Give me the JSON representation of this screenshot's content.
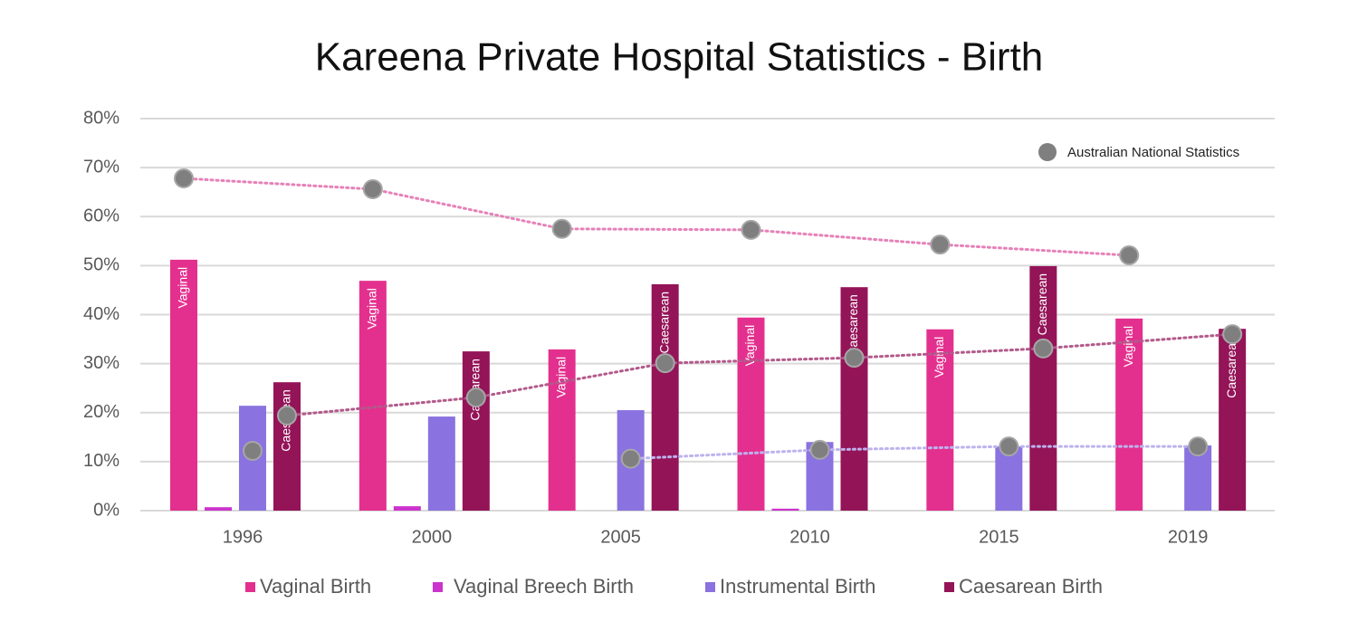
{
  "chart_data": {
    "type": "bar",
    "title": "Kareena Private Hospital Statistics - Birth",
    "categories": [
      "1996",
      "2000",
      "2005",
      "2010",
      "2015",
      "2019"
    ],
    "ylim": [
      0,
      80
    ],
    "yticks": [
      {
        "value": 0,
        "label": "0%"
      },
      {
        "value": 10,
        "label": "10%"
      },
      {
        "value": 20,
        "label": "20%"
      },
      {
        "value": 30,
        "label": "30%"
      },
      {
        "value": 40,
        "label": "40%"
      },
      {
        "value": 50,
        "label": "50%"
      },
      {
        "value": 60,
        "label": "60%"
      },
      {
        "value": 70,
        "label": "70%"
      },
      {
        "value": 80,
        "label": "80%"
      }
    ],
    "grid": true,
    "national_legend": "Australian National Statistics",
    "national_color": "#7f7f7f",
    "series": [
      {
        "name": "Vaginal Birth",
        "color": "#e3308e",
        "bar_label": "Vaginal",
        "values": [
          51.2,
          46.9,
          32.9,
          39.4,
          37.0,
          39.2
        ],
        "line_color": "#e681b8",
        "national": [
          67.8,
          65.6,
          57.5,
          57.3,
          54.3,
          52.1
        ]
      },
      {
        "name": "Vaginal Breech Birth",
        "color": "#cc33cc",
        "values": [
          0.7,
          0.9,
          0,
          0.4,
          0,
          0
        ]
      },
      {
        "name": "Instrumental Birth",
        "color": "#8a72e0",
        "values": [
          21.4,
          19.2,
          20.5,
          14.0,
          13.1,
          13.3
        ],
        "line_color": "#bdb3ef",
        "national": [
          12.2,
          null,
          10.6,
          12.4,
          13.1,
          13.1
        ]
      },
      {
        "name": "Caesarean Birth",
        "color": "#941458",
        "bar_label": "Caesarean",
        "values": [
          26.2,
          32.5,
          46.2,
          45.6,
          49.9,
          37.1
        ],
        "line_color": "#b25a8b",
        "national": [
          19.4,
          23.1,
          30.1,
          31.2,
          33.1,
          36.0
        ]
      }
    ]
  }
}
